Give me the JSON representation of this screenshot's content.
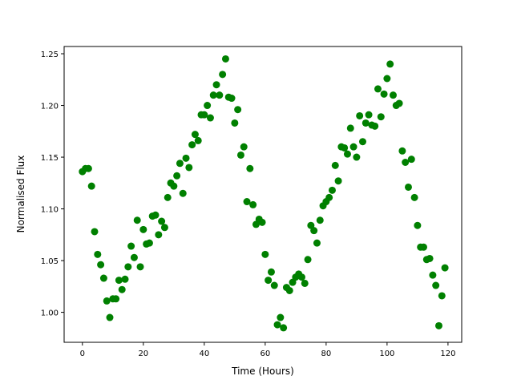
{
  "chart_data": {
    "type": "scatter",
    "title": "",
    "xlabel": "Time (Hours)",
    "ylabel": "Normalised Flux",
    "xlim": [
      -6,
      124.5
    ],
    "ylim": [
      0.971,
      1.257
    ],
    "xticks": [
      0,
      20,
      40,
      60,
      80,
      100,
      120
    ],
    "yticks": [
      "1.00",
      "1.05",
      "1.10",
      "1.15",
      "1.20",
      "1.25"
    ],
    "grid": false,
    "marker_color": "#008000",
    "x_start": 0,
    "x_step": 1,
    "y": [
      1.136,
      1.139,
      1.139,
      1.122,
      1.078,
      1.056,
      1.046,
      1.033,
      1.011,
      0.995,
      1.013,
      1.013,
      1.031,
      1.022,
      1.032,
      1.044,
      1.064,
      1.053,
      1.089,
      1.044,
      1.08,
      1.066,
      1.067,
      1.093,
      1.094,
      1.075,
      1.088,
      1.082,
      1.111,
      1.125,
      1.122,
      1.132,
      1.144,
      1.115,
      1.149,
      1.14,
      1.162,
      1.172,
      1.166,
      1.191,
      1.191,
      1.2,
      1.188,
      1.21,
      1.22,
      1.21,
      1.23,
      1.245,
      1.208,
      1.207,
      1.183,
      1.196,
      1.152,
      1.16,
      1.107,
      1.139,
      1.104,
      1.085,
      1.09,
      1.087,
      1.056,
      1.031,
      1.039,
      1.026,
      0.988,
      0.995,
      0.985,
      1.024,
      1.021,
      1.029,
      1.034,
      1.037,
      1.034,
      1.028,
      1.051,
      1.084,
      1.079,
      1.067,
      1.089,
      1.103,
      1.107,
      1.111,
      1.118,
      1.142,
      1.127,
      1.16,
      1.159,
      1.153,
      1.178,
      1.16,
      1.15,
      1.19,
      1.165,
      1.183,
      1.191,
      1.181,
      1.18,
      1.216,
      1.189,
      1.211,
      1.226,
      1.24,
      1.21,
      1.2,
      1.202,
      1.156,
      1.145,
      1.121,
      1.148,
      1.111,
      1.084,
      1.063,
      1.063,
      1.051,
      1.052,
      1.036,
      1.026,
      0.987,
      1.016,
      1.043
    ]
  }
}
